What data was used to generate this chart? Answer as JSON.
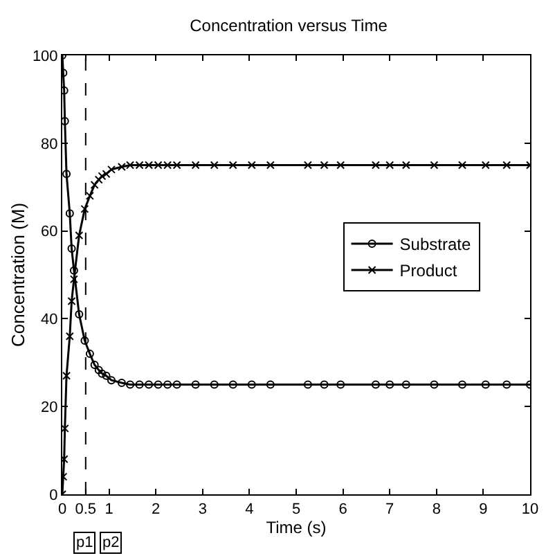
{
  "chart_data": {
    "type": "line",
    "title": "Concentration versus Time",
    "xlabel": "Time (s)",
    "ylabel": "Concentration (M)",
    "x": [
      0,
      0.02,
      0.04,
      0.055,
      0.09,
      0.16,
      0.2,
      0.25,
      0.36,
      0.48,
      0.59,
      0.69,
      0.78,
      0.85,
      0.94,
      1.05,
      1.27,
      1.45,
      1.65,
      1.85,
      2.05,
      2.25,
      2.45,
      2.85,
      3.25,
      3.65,
      4.05,
      4.45,
      5.25,
      5.6,
      5.95,
      6.7,
      7.0,
      7.35,
      7.95,
      8.55,
      9.05,
      9.5,
      10
    ],
    "series": [
      {
        "name": "Substrate",
        "color": "#000000",
        "marker": "circle",
        "values": [
          100,
          96,
          92,
          85,
          73,
          64,
          56,
          51,
          41,
          35,
          32,
          29.5,
          28.3,
          27.5,
          27,
          26,
          25.4,
          25,
          25,
          25,
          25,
          25,
          25,
          25,
          25,
          25,
          25,
          25,
          25,
          25,
          25,
          25,
          25,
          25,
          25,
          25,
          25,
          25,
          25
        ]
      },
      {
        "name": "Product",
        "color": "#000000",
        "marker": "cross",
        "values": [
          0,
          4,
          8,
          15,
          27,
          36,
          44,
          49,
          59,
          65,
          68,
          70.5,
          71.7,
          72.5,
          73,
          74,
          74.6,
          75,
          75,
          75,
          75,
          75,
          75,
          75,
          75,
          75,
          75,
          75,
          75,
          75,
          75,
          75,
          75,
          75,
          75,
          75,
          75,
          75,
          75
        ]
      }
    ],
    "xlim": [
      0,
      10
    ],
    "xticks": [
      0,
      0.5,
      1,
      2,
      3,
      4,
      5,
      6,
      7,
      8,
      9,
      10
    ],
    "ylim": [
      0,
      100
    ],
    "yticks": [
      0,
      20,
      40,
      60,
      80,
      100
    ],
    "ref_lines": [
      {
        "axis": "x",
        "value": 0.5,
        "line_style": "dashed",
        "color": "#000000"
      }
    ],
    "annotations": [
      "p1",
      "p2"
    ],
    "legend": "right",
    "line_style": "solid"
  }
}
